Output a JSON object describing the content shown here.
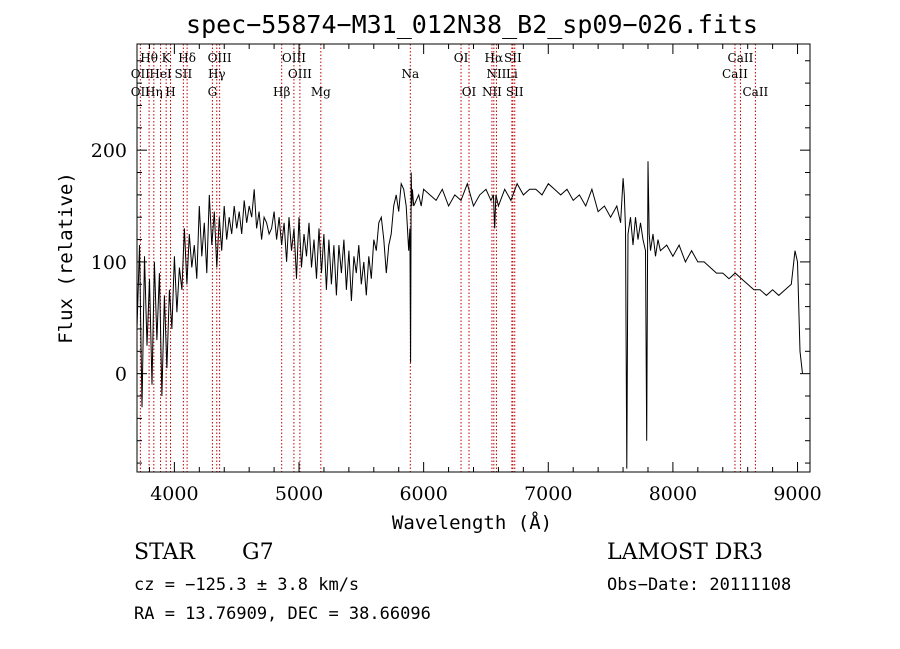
{
  "chart_data": {
    "type": "line",
    "title": "spec−55874−M31_012N38_B2_sp09−026.fits",
    "xlabel": "Wavelength (Å)",
    "ylabel": "Flux (relative)",
    "xlim": [
      3700,
      9100
    ],
    "ylim": [
      -88,
      295
    ],
    "xticks": [
      4000,
      5000,
      6000,
      7000,
      8000,
      9000
    ],
    "yticks": [
      0,
      100,
      200
    ],
    "series": [
      {
        "name": "flux",
        "x": [
          3700,
          3720,
          3740,
          3760,
          3780,
          3800,
          3820,
          3840,
          3860,
          3880,
          3900,
          3920,
          3940,
          3960,
          3980,
          4000,
          4020,
          4040,
          4060,
          4080,
          4100,
          4120,
          4140,
          4160,
          4180,
          4200,
          4220,
          4240,
          4260,
          4280,
          4300,
          4320,
          4340,
          4360,
          4380,
          4400,
          4420,
          4440,
          4460,
          4480,
          4500,
          4520,
          4540,
          4560,
          4580,
          4600,
          4620,
          4640,
          4660,
          4680,
          4700,
          4720,
          4740,
          4760,
          4780,
          4800,
          4820,
          4840,
          4860,
          4880,
          4900,
          4920,
          4940,
          4960,
          4980,
          5000,
          5020,
          5040,
          5060,
          5080,
          5100,
          5120,
          5140,
          5160,
          5180,
          5200,
          5220,
          5240,
          5260,
          5280,
          5300,
          5320,
          5340,
          5360,
          5380,
          5400,
          5420,
          5440,
          5460,
          5480,
          5500,
          5520,
          5540,
          5560,
          5580,
          5600,
          5620,
          5640,
          5660,
          5680,
          5700,
          5720,
          5740,
          5760,
          5780,
          5800,
          5820,
          5840,
          5860,
          5880,
          5890,
          5895,
          5900,
          5905,
          5910,
          5920,
          5940,
          5960,
          5980,
          6000,
          6050,
          6100,
          6150,
          6200,
          6250,
          6300,
          6350,
          6400,
          6450,
          6500,
          6540,
          6560,
          6570,
          6580,
          6600,
          6650,
          6700,
          6750,
          6800,
          6850,
          6900,
          6950,
          7000,
          7050,
          7100,
          7150,
          7200,
          7250,
          7300,
          7350,
          7400,
          7450,
          7500,
          7550,
          7580,
          7600,
          7610,
          7620,
          7630,
          7640,
          7660,
          7680,
          7700,
          7720,
          7740,
          7760,
          7780,
          7790,
          7800,
          7810,
          7820,
          7840,
          7860,
          7880,
          7900,
          7950,
          8000,
          8050,
          8100,
          8150,
          8200,
          8250,
          8300,
          8350,
          8400,
          8450,
          8500,
          8550,
          8600,
          8650,
          8700,
          8750,
          8800,
          8850,
          8900,
          8950,
          8980,
          9000,
          9020,
          9040
        ],
        "values": [
          40,
          115,
          -30,
          105,
          25,
          85,
          -10,
          100,
          30,
          90,
          -20,
          70,
          5,
          75,
          40,
          105,
          55,
          95,
          75,
          130,
          80,
          125,
          95,
          115,
          85,
          150,
          105,
          135,
          90,
          160,
          115,
          145,
          95,
          140,
          110,
          150,
          120,
          140,
          125,
          150,
          130,
          145,
          125,
          155,
          135,
          150,
          140,
          165,
          130,
          145,
          120,
          140,
          135,
          125,
          130,
          145,
          120,
          140,
          115,
          135,
          100,
          140,
          110,
          130,
          85,
          140,
          95,
          125,
          105,
          135,
          95,
          120,
          85,
          130,
          90,
          125,
          75,
          120,
          80,
          115,
          70,
          115,
          90,
          120,
          75,
          110,
          65,
          105,
          90,
          115,
          80,
          100,
          70,
          105,
          85,
          120,
          110,
          135,
          140,
          120,
          90,
          115,
          125,
          150,
          160,
          145,
          170,
          165,
          150,
          110,
          130,
          10,
          180,
          150,
          165,
          150,
          155,
          160,
          150,
          165,
          160,
          155,
          165,
          150,
          160,
          155,
          170,
          150,
          160,
          165,
          155,
          160,
          130,
          160,
          150,
          165,
          155,
          170,
          160,
          165,
          165,
          160,
          170,
          165,
          160,
          165,
          155,
          160,
          150,
          165,
          145,
          150,
          140,
          150,
          135,
          175,
          160,
          130,
          -85,
          125,
          140,
          115,
          140,
          120,
          135,
          120,
          110,
          -60,
          190,
          125,
          110,
          125,
          105,
          120,
          110,
          115,
          105,
          115,
          100,
          110,
          100,
          100,
          95,
          90,
          90,
          85,
          90,
          85,
          80,
          75,
          75,
          70,
          75,
          70,
          75,
          80,
          110,
          100,
          20,
          0
        ]
      }
    ],
    "line_markers": [
      {
        "label": "Hθ",
        "x": 3797,
        "row": 1
      },
      {
        "label": "K",
        "x": 3934,
        "row": 1
      },
      {
        "label": "Hδ",
        "x": 4102,
        "row": 1
      },
      {
        "label": "OIII",
        "x": 4363,
        "row": 1
      },
      {
        "label": "OIII",
        "x": 4959,
        "row": 1
      },
      {
        "label": "OI",
        "x": 6300,
        "row": 1
      },
      {
        "label": "Hα",
        "x": 6563,
        "row": 1
      },
      {
        "label": "SII",
        "x": 6716,
        "row": 1
      },
      {
        "label": "CaII",
        "x": 8542,
        "row": 1
      },
      {
        "label": "OII",
        "x": 3727,
        "row": 2
      },
      {
        "label": "HeI",
        "x": 3889,
        "row": 2
      },
      {
        "label": "SII",
        "x": 4072,
        "row": 2
      },
      {
        "label": "Hγ",
        "x": 4340,
        "row": 2
      },
      {
        "label": "OIII",
        "x": 5007,
        "row": 2
      },
      {
        "label": "Na",
        "x": 5893,
        "row": 2
      },
      {
        "label": "NII",
        "x": 6584,
        "row": 2
      },
      {
        "label": "Li",
        "x": 6708,
        "row": 2
      },
      {
        "label": "CaII",
        "x": 8498,
        "row": 2
      },
      {
        "label": "OII",
        "x": 3727,
        "row": 3
      },
      {
        "label": "Hη",
        "x": 3835,
        "row": 3
      },
      {
        "label": "H",
        "x": 3969,
        "row": 3
      },
      {
        "label": "G",
        "x": 4305,
        "row": 3
      },
      {
        "label": "Hβ",
        "x": 4861,
        "row": 3
      },
      {
        "label": "Mg",
        "x": 5175,
        "row": 3
      },
      {
        "label": "OI",
        "x": 6364,
        "row": 3
      },
      {
        "label": "NII",
        "x": 6548,
        "row": 3
      },
      {
        "label": "SII",
        "x": 6731,
        "row": 3
      },
      {
        "label": "CaII",
        "x": 8662,
        "row": 3
      }
    ],
    "marker_lines": [
      3727,
      3797,
      3835,
      3889,
      3934,
      3969,
      4072,
      4102,
      4305,
      4340,
      4363,
      4861,
      4959,
      5007,
      5175,
      5893,
      6300,
      6364,
      6548,
      6563,
      6584,
      6708,
      6716,
      6731,
      8498,
      8542,
      8662
    ]
  },
  "footer": {
    "object_class": "STAR",
    "subclass": "G7",
    "survey": "LAMOST DR3",
    "redshift": "cz = −125.3 ± 3.8 km/s",
    "obs_date": "Obs−Date: 20111108",
    "coordinates": "RA =  13.76909, DEC =  38.66096"
  },
  "colors": {
    "spectrum": "#000000",
    "marker_line": "#c00000",
    "axis": "#000000"
  }
}
